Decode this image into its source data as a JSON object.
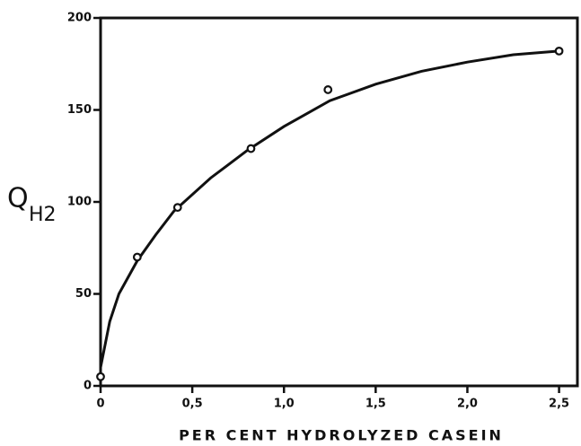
{
  "chart_data": {
    "type": "scatter",
    "xlabel": "PER CENT HYDROLYZED CASEIN",
    "ylabel": "Q",
    "ylabel_sub": "H2",
    "x": [
      0,
      0.2,
      0.42,
      0.82,
      1.24,
      2.5
    ],
    "values": [
      5,
      70,
      97,
      129,
      161,
      182
    ],
    "fit_x": [
      0,
      0.05,
      0.1,
      0.2,
      0.3,
      0.4,
      0.6,
      0.8,
      1.0,
      1.25,
      1.5,
      1.75,
      2.0,
      2.25,
      2.5
    ],
    "fit_values": [
      10,
      35,
      50,
      68,
      82,
      95,
      113,
      128,
      141,
      155,
      164,
      171,
      176,
      180,
      182
    ],
    "color": "#111111",
    "xlim": [
      0,
      2.6
    ],
    "ylim": [
      0,
      200
    ],
    "xticks": [
      0,
      {
        "value": 0.5,
        "label": "0,5"
      },
      {
        "value": 1,
        "label": "1,0"
      },
      {
        "value": 1.5,
        "label": "1,5"
      },
      {
        "value": 2,
        "label": "2,0"
      },
      {
        "value": 2.5,
        "label": "2,5"
      }
    ],
    "yticks": [
      0,
      50,
      100,
      150,
      200
    ]
  }
}
